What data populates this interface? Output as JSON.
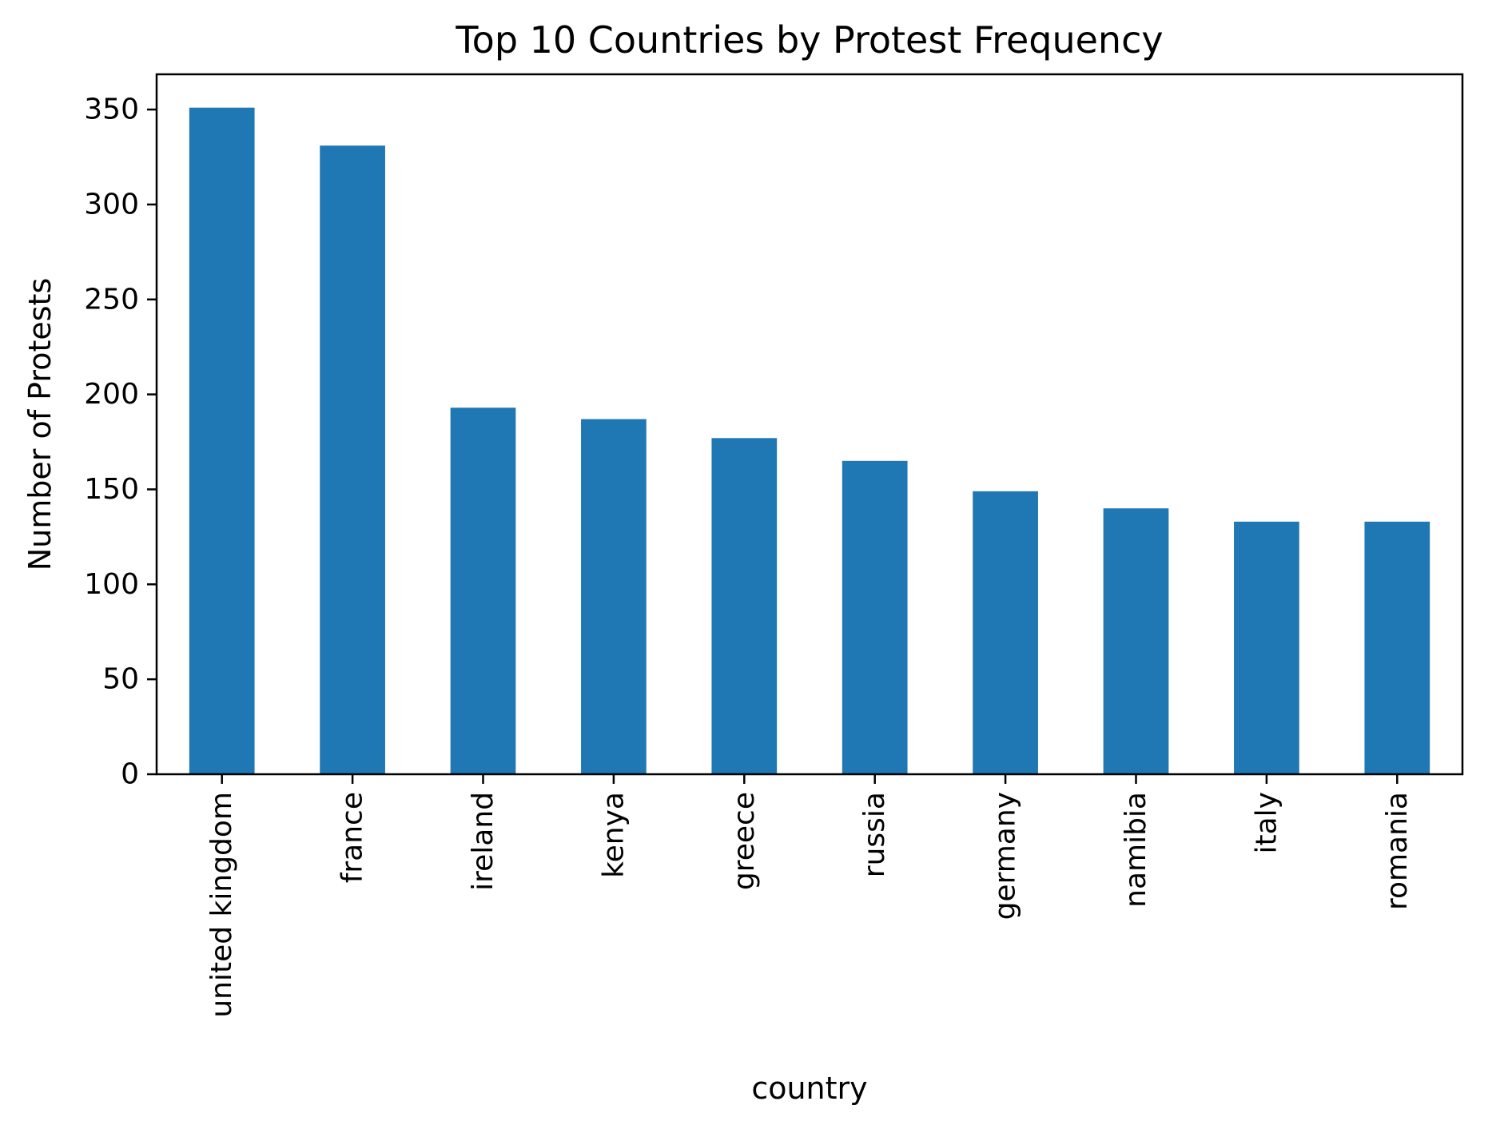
{
  "chart_data": {
    "type": "bar",
    "title": "Top 10 Countries by Protest Frequency",
    "xlabel": "country",
    "ylabel": "Number of Protests",
    "categories": [
      "united kingdom",
      "france",
      "ireland",
      "kenya",
      "greece",
      "russia",
      "germany",
      "namibia",
      "italy",
      "romania"
    ],
    "values": [
      351,
      331,
      193,
      187,
      177,
      165,
      149,
      140,
      133,
      133
    ],
    "ylim": [
      0,
      368.55
    ],
    "yticks": [
      0,
      50,
      100,
      150,
      200,
      250,
      300,
      350
    ],
    "ytick_labels": [
      "0",
      "50",
      "100",
      "150",
      "200",
      "250",
      "300",
      "350"
    ],
    "bar_color": "#1f77b4",
    "grid": false,
    "legend": "none"
  }
}
